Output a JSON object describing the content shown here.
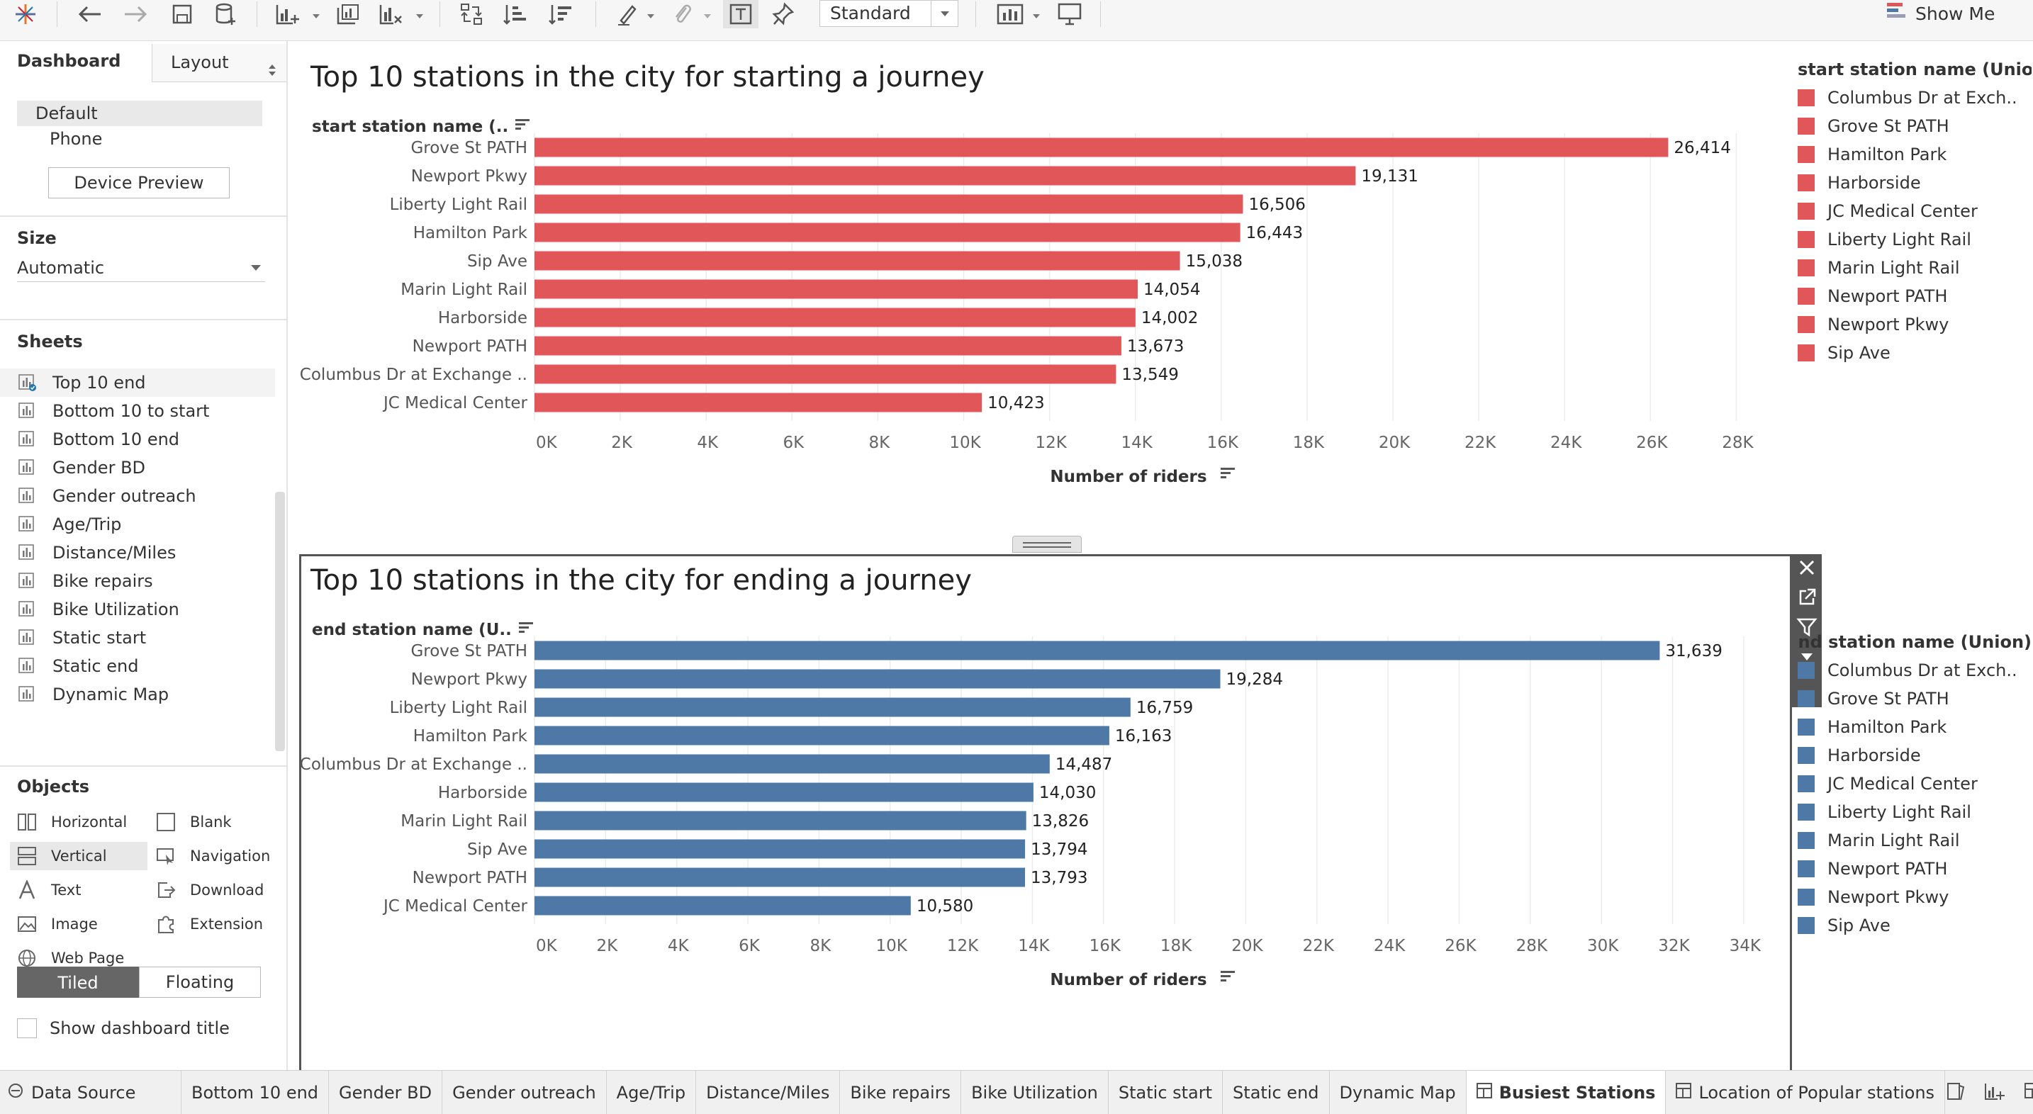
{
  "toolbar": {
    "view_select": "Standard",
    "show_me_label": "Show Me",
    "icons": [
      "tableau-logo-icon",
      "undo-icon",
      "redo-icon",
      "save-icon",
      "new-data-source-icon",
      "new-worksheet-icon",
      "duplicate-sheet-icon",
      "clear-sheet-icon",
      "swap-axes-icon",
      "sort-ascending-icon",
      "sort-descending-icon",
      "highlight-icon",
      "group-icon",
      "show-labels-icon",
      "pin-icon",
      "chart-options-icon",
      "presentation-icon"
    ]
  },
  "left_panel": {
    "tab_dashboard": "Dashboard",
    "tab_layout": "Layout",
    "devices": {
      "default": "Default",
      "phone": "Phone",
      "preview_button": "Device Preview"
    },
    "size": {
      "heading": "Size",
      "value": "Automatic"
    },
    "sheets": {
      "heading": "Sheets",
      "items": [
        "Top 10 end",
        "Bottom 10 to start",
        "Bottom 10 end",
        "Gender BD",
        "Gender outreach",
        "Age/Trip",
        "Distance/Miles",
        "Bike repairs",
        "Bike Utilization",
        "Static start",
        "Static end",
        "Dynamic Map"
      ]
    },
    "objects": {
      "heading": "Objects",
      "items": [
        "Horizontal",
        "Blank",
        "Vertical",
        "Navigation",
        "Text",
        "Download",
        "Image",
        "Extension",
        "Web Page"
      ]
    },
    "tiled_label": "Tiled",
    "floating_label": "Floating",
    "show_dashboard_title": "Show dashboard title"
  },
  "charts": {
    "start": {
      "title": "Top 10 stations in the city for starting a journey",
      "row_field": "start station name (..",
      "legend_title": "start station name (Union)"
    },
    "end": {
      "title": "Top 10 stations in the city for ending a journey",
      "row_field": "end station name (U..",
      "legend_title": "end station name (Union)"
    }
  },
  "legend_items": [
    "Columbus Dr at Exch..",
    "Grove St PATH",
    "Hamilton Park",
    "Harborside",
    "JC Medical Center",
    "Liberty Light Rail",
    "Marin Light Rail",
    "Newport PATH",
    "Newport Pkwy",
    "Sip Ave"
  ],
  "colors": {
    "start_bars": "#e15759",
    "end_bars": "#4e79a7",
    "grid": "#ececec"
  },
  "chart_data": [
    {
      "type": "bar",
      "orientation": "horizontal",
      "title": "Top 10 stations in the city for starting a journey",
      "ylabel": "start station name (..",
      "xlabel": "Number of riders",
      "categories": [
        "Grove St PATH",
        "Newport Pkwy",
        "Liberty Light Rail",
        "Hamilton Park",
        "Sip Ave",
        "Marin Light Rail",
        "Harborside",
        "Newport PATH",
        "Columbus Dr at Exchange ..",
        "JC Medical Center"
      ],
      "values": [
        26414,
        19131,
        16506,
        16443,
        15038,
        14054,
        14002,
        13673,
        13549,
        10423
      ],
      "value_labels": [
        "26,414",
        "19,131",
        "16,506",
        "16,443",
        "15,038",
        "14,054",
        "14,002",
        "13,673",
        "13,549",
        "10,423"
      ],
      "xlim": [
        0,
        29000
      ],
      "xticks": [
        0,
        2000,
        4000,
        6000,
        8000,
        10000,
        12000,
        14000,
        16000,
        18000,
        20000,
        22000,
        24000,
        26000,
        28000
      ],
      "xtick_labels": [
        "0K",
        "2K",
        "4K",
        "6K",
        "8K",
        "10K",
        "12K",
        "14K",
        "16K",
        "18K",
        "20K",
        "22K",
        "24K",
        "26K",
        "28K"
      ],
      "grid": true,
      "legend": "right"
    },
    {
      "type": "bar",
      "orientation": "horizontal",
      "title": "Top 10 stations in the city for ending a journey",
      "ylabel": "end station name (U..",
      "xlabel": "Number of riders",
      "categories": [
        "Grove St PATH",
        "Newport Pkwy",
        "Liberty Light Rail",
        "Hamilton Park",
        "Columbus Dr at Exchange ..",
        "Harborside",
        "Marin Light Rail",
        "Sip Ave",
        "Newport PATH",
        "JC Medical Center"
      ],
      "values": [
        31639,
        19284,
        16759,
        16163,
        14487,
        14030,
        13826,
        13794,
        13793,
        10580
      ],
      "value_labels": [
        "31,639",
        "19,284",
        "16,759",
        "16,163",
        "14,487",
        "14,030",
        "13,826",
        "13,794",
        "13,793",
        "10,580"
      ],
      "xlim": [
        0,
        35000
      ],
      "xticks": [
        0,
        2000,
        4000,
        6000,
        8000,
        10000,
        12000,
        14000,
        16000,
        18000,
        20000,
        22000,
        24000,
        26000,
        28000,
        30000,
        32000,
        34000
      ],
      "xtick_labels": [
        "0K",
        "2K",
        "4K",
        "6K",
        "8K",
        "10K",
        "12K",
        "14K",
        "16K",
        "18K",
        "20K",
        "22K",
        "24K",
        "26K",
        "28K",
        "30K",
        "32K",
        "34K"
      ],
      "grid": true,
      "legend": "right"
    }
  ],
  "bottom_tabs": {
    "data_source": "Data Source",
    "tabs": [
      "Bottom 10 end",
      "Gender BD",
      "Gender outreach",
      "Age/Trip",
      "Distance/Miles",
      "Bike repairs",
      "Bike Utilization",
      "Static start",
      "Static end",
      "Dynamic Map",
      "Busiest Stations",
      "Location of Popular stations"
    ],
    "active": "Busiest Stations"
  }
}
